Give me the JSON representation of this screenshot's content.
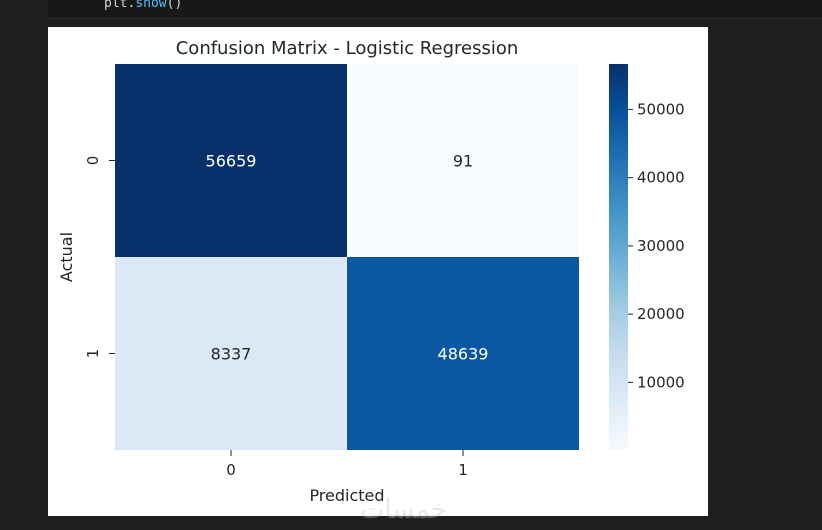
{
  "code": {
    "object": "plt",
    "method": "show",
    "args": "()"
  },
  "watermark": "خمسات",
  "chart_data": {
    "type": "heatmap",
    "title": "Confusion Matrix - Logistic Regression",
    "xlabel": "Predicted",
    "ylabel": "Actual",
    "x_categories": [
      "0",
      "1"
    ],
    "y_categories": [
      "0",
      "1"
    ],
    "values": [
      [
        56659,
        91
      ],
      [
        8337,
        48639
      ]
    ],
    "annotations": [
      "56659",
      "91",
      "8337",
      "48639"
    ],
    "colormap": "Blues",
    "colorbar": {
      "ticks": [
        10000,
        20000,
        30000,
        40000,
        50000
      ],
      "tick_labels": [
        "10000",
        "20000",
        "30000",
        "40000",
        "50000"
      ],
      "range": [
        91,
        56659
      ]
    },
    "colors": {
      "cell_0_0": "#08306b",
      "cell_0_1": "#f7fbff",
      "cell_1_0": "#dbe8f6",
      "cell_1_1": "#0b57a4",
      "text_light": "#ffffff",
      "text_dark": "#262626"
    }
  }
}
